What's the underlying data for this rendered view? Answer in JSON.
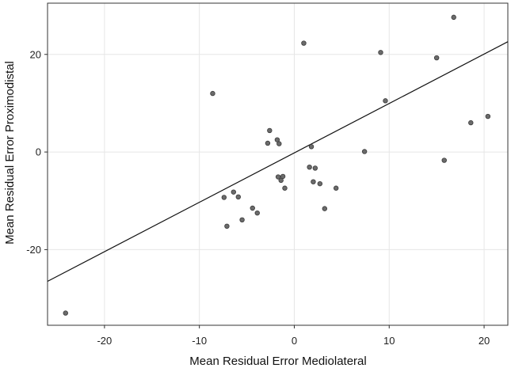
{
  "chart_data": {
    "type": "scatter",
    "title": "",
    "xlabel": "Mean Residual Error Mediolateral",
    "ylabel": "Mean Residual Error Proximodistal",
    "xlim": [
      -26,
      22.5
    ],
    "ylim": [
      -35.5,
      30.5
    ],
    "x_ticks": [
      -20,
      -10,
      0,
      10,
      20
    ],
    "y_ticks": [
      -20,
      0,
      20
    ],
    "x_tick_labels": [
      "-20",
      "-10",
      "0",
      "10",
      "20"
    ],
    "y_tick_labels": [
      "-20",
      "0",
      "20"
    ],
    "grid": true,
    "legend": "none",
    "colors": {
      "point": "#6b6b6b",
      "point_edge": "#3a3a3a",
      "line": "#111111",
      "grid": "#e6e6e6",
      "axis": "#333333"
    },
    "points": [
      {
        "x": -24.1,
        "y": -33
      },
      {
        "x": -8.6,
        "y": 12
      },
      {
        "x": -7.4,
        "y": -9.3
      },
      {
        "x": -7.1,
        "y": -15.2
      },
      {
        "x": -6.4,
        "y": -8.2
      },
      {
        "x": -5.9,
        "y": -9.2
      },
      {
        "x": -5.5,
        "y": -13.9
      },
      {
        "x": -4.4,
        "y": -11.5
      },
      {
        "x": -3.9,
        "y": -12.5
      },
      {
        "x": -2.8,
        "y": 1.8
      },
      {
        "x": -2.6,
        "y": 4.4
      },
      {
        "x": -1.8,
        "y": 2.5
      },
      {
        "x": -1.6,
        "y": 1.7
      },
      {
        "x": -1.7,
        "y": -5.1
      },
      {
        "x": -1.4,
        "y": -5.8
      },
      {
        "x": -1.2,
        "y": -5
      },
      {
        "x": -1,
        "y": -7.4
      },
      {
        "x": 1,
        "y": 22.3
      },
      {
        "x": 1.6,
        "y": -3.1
      },
      {
        "x": 1.8,
        "y": 1.1
      },
      {
        "x": 2,
        "y": -6.1
      },
      {
        "x": 2.2,
        "y": -3.3
      },
      {
        "x": 2.7,
        "y": -6.5
      },
      {
        "x": 3.2,
        "y": -11.6
      },
      {
        "x": 4.4,
        "y": -7.4
      },
      {
        "x": 7.4,
        "y": 0.1
      },
      {
        "x": 9.1,
        "y": 20.4
      },
      {
        "x": 9.6,
        "y": 10.5
      },
      {
        "x": 15,
        "y": 19.3
      },
      {
        "x": 15.8,
        "y": -1.7
      },
      {
        "x": 16.8,
        "y": 27.6
      },
      {
        "x": 18.6,
        "y": 6
      },
      {
        "x": 20.4,
        "y": 7.3
      }
    ],
    "fit_line": {
      "x1": -26,
      "y1": -26.5,
      "x2": 22.5,
      "y2": 22.6
    }
  }
}
